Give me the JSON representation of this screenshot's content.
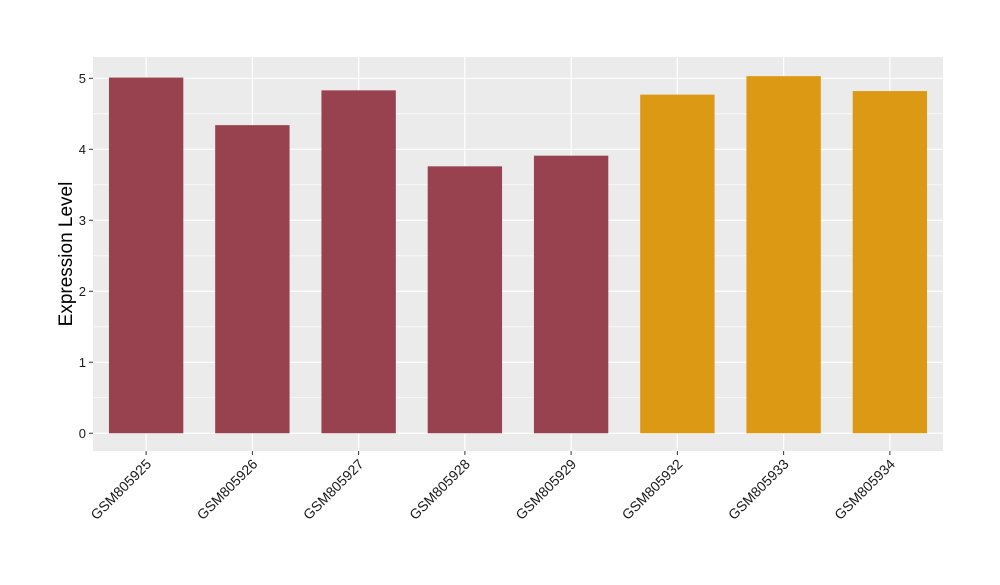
{
  "chart_data": {
    "type": "bar",
    "title": "",
    "xlabel": "",
    "ylabel": "Expression Level",
    "ylim": [
      -0.25,
      5.3
    ],
    "yticks": [
      0,
      1,
      2,
      3,
      4,
      5
    ],
    "grid": true,
    "legend": "none",
    "categories": [
      "GSM805925",
      "GSM805926",
      "GSM805927",
      "GSM805928",
      "GSM805929",
      "GSM805932",
      "GSM805933",
      "GSM805934"
    ],
    "values": [
      5.01,
      4.34,
      4.83,
      3.76,
      3.91,
      4.77,
      5.03,
      4.82
    ],
    "groups": [
      "group1",
      "group1",
      "group1",
      "group1",
      "group1",
      "group2",
      "group2",
      "group2"
    ],
    "colors": {
      "group1": "#98414F",
      "group2": "#DC9914",
      "panel_background": "#EBEBEB",
      "grid": "#FFFFFF"
    }
  }
}
